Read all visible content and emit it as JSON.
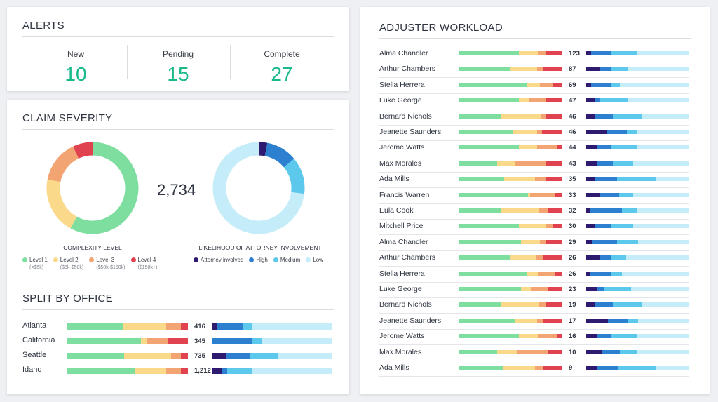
{
  "colors": {
    "level1": "#7ddea0",
    "level2": "#fad98a",
    "level3": "#f2a572",
    "level4": "#e0424f",
    "attorney": "#2e1a6e",
    "high": "#2d7fcf",
    "medium": "#5bc8ec",
    "low": "#c5ecf9",
    "accent": "#18b98a"
  },
  "alerts": {
    "title": "ALERTS",
    "items": [
      {
        "label": "New",
        "value": "10"
      },
      {
        "label": "Pending",
        "value": "15"
      },
      {
        "label": "Complete",
        "value": "27"
      }
    ]
  },
  "severity": {
    "title": "CLAIM SEVERITY",
    "total": "2,734",
    "complexity": {
      "title": "COMPLEXITY LEVEL",
      "slices": [
        {
          "label": "Level 1",
          "sub": "(<$5k)",
          "value": 0.58
        },
        {
          "label": "Level 2",
          "sub": "($5k-$50k)",
          "value": 0.2
        },
        {
          "label": "Level 3",
          "sub": "($50k-$150k)",
          "value": 0.15
        },
        {
          "label": "Level 4",
          "sub": "($150k+)",
          "value": 0.07
        }
      ]
    },
    "attorney": {
      "title": "LIKELIHOOD OF ATTORNEY INVOLVEMENT",
      "slices": [
        {
          "label": "Attorney involved",
          "value": 0.03
        },
        {
          "label": "High",
          "value": 0.11
        },
        {
          "label": "Medium",
          "value": 0.13
        },
        {
          "label": "Low",
          "value": 0.73
        }
      ]
    }
  },
  "offices": {
    "title": "SPLIT BY OFFICE",
    "rows": [
      {
        "name": "Atlanta",
        "count": "416",
        "severity": [
          0.46,
          0.36,
          0.12,
          0.06
        ],
        "attorney": [
          0.04,
          0.22,
          0.08,
          0.66
        ]
      },
      {
        "name": "California",
        "count": "345",
        "severity": [
          0.61,
          0.05,
          0.17,
          0.17
        ],
        "attorney": [
          0.0,
          0.33,
          0.08,
          0.59
        ]
      },
      {
        "name": "Seattle",
        "count": "735",
        "severity": [
          0.47,
          0.39,
          0.08,
          0.06
        ],
        "attorney": [
          0.12,
          0.2,
          0.23,
          0.45
        ]
      },
      {
        "name": "Idaho",
        "count": "1,212",
        "severity": [
          0.56,
          0.26,
          0.12,
          0.06
        ],
        "attorney": [
          0.08,
          0.05,
          0.21,
          0.66
        ]
      }
    ]
  },
  "workload": {
    "title": "ADJUSTER WORKLOAD",
    "rows": [
      {
        "name": "Alma Chandler",
        "count": "123",
        "severity": [
          0.58,
          0.19,
          0.08,
          0.15
        ],
        "attorney": [
          0.05,
          0.2,
          0.24,
          0.51
        ]
      },
      {
        "name": "Arthur Chambers",
        "count": "87",
        "severity": [
          0.49,
          0.27,
          0.06,
          0.18
        ],
        "attorney": [
          0.14,
          0.11,
          0.16,
          0.59
        ]
      },
      {
        "name": "Stella Herrera",
        "count": "69",
        "severity": [
          0.66,
          0.13,
          0.13,
          0.08
        ],
        "attorney": [
          0.05,
          0.2,
          0.08,
          0.67
        ]
      },
      {
        "name": "Luke George",
        "count": "47",
        "severity": [
          0.58,
          0.1,
          0.16,
          0.16
        ],
        "attorney": [
          0.09,
          0.05,
          0.27,
          0.59
        ]
      },
      {
        "name": "Bernard Nichols",
        "count": "46",
        "severity": [
          0.41,
          0.39,
          0.05,
          0.15
        ],
        "attorney": [
          0.08,
          0.18,
          0.28,
          0.46
        ]
      },
      {
        "name": "Jeanette Saunders",
        "count": "46",
        "severity": [
          0.53,
          0.23,
          0.05,
          0.19
        ],
        "attorney": [
          0.2,
          0.2,
          0.1,
          0.5
        ]
      },
      {
        "name": "Jerome Watts",
        "count": "44",
        "severity": [
          0.58,
          0.18,
          0.19,
          0.05
        ],
        "attorney": [
          0.1,
          0.14,
          0.25,
          0.51
        ]
      },
      {
        "name": "Max Morales",
        "count": "43",
        "severity": [
          0.37,
          0.18,
          0.3,
          0.15
        ],
        "attorney": [
          0.1,
          0.16,
          0.2,
          0.54
        ]
      },
      {
        "name": "Ada Mills",
        "count": "35",
        "severity": [
          0.44,
          0.3,
          0.1,
          0.16
        ],
        "attorney": [
          0.09,
          0.21,
          0.38,
          0.32
        ]
      },
      {
        "name": "Francis Warren",
        "count": "33",
        "severity": [
          0.67,
          0.02,
          0.24,
          0.07
        ],
        "attorney": [
          0.14,
          0.18,
          0.14,
          0.54
        ]
      },
      {
        "name": "Eula Cook",
        "count": "32",
        "severity": [
          0.41,
          0.37,
          0.09,
          0.13
        ],
        "attorney": [
          0.04,
          0.31,
          0.14,
          0.51
        ]
      },
      {
        "name": "Mitchell Price",
        "count": "30",
        "severity": [
          0.58,
          0.27,
          0.06,
          0.09
        ],
        "attorney": [
          0.09,
          0.16,
          0.21,
          0.54
        ]
      },
      {
        "name": "Alma Chandler",
        "count": "29",
        "severity": [
          0.6,
          0.19,
          0.06,
          0.15
        ],
        "attorney": [
          0.06,
          0.24,
          0.21,
          0.49
        ]
      },
      {
        "name": "Arthur Chambers",
        "count": "26",
        "severity": [
          0.49,
          0.26,
          0.07,
          0.18
        ],
        "attorney": [
          0.14,
          0.11,
          0.14,
          0.61
        ]
      },
      {
        "name": "Stella Herrera",
        "count": "26",
        "severity": [
          0.66,
          0.11,
          0.16,
          0.07
        ],
        "attorney": [
          0.04,
          0.21,
          0.1,
          0.65
        ]
      },
      {
        "name": "Luke George",
        "count": "23",
        "severity": [
          0.6,
          0.1,
          0.16,
          0.14
        ],
        "attorney": [
          0.1,
          0.07,
          0.27,
          0.56
        ]
      },
      {
        "name": "Bernard Nichols",
        "count": "19",
        "severity": [
          0.41,
          0.37,
          0.07,
          0.15
        ],
        "attorney": [
          0.09,
          0.17,
          0.29,
          0.45
        ]
      },
      {
        "name": "Jeanette Saunders",
        "count": "17",
        "severity": [
          0.54,
          0.22,
          0.06,
          0.18
        ],
        "attorney": [
          0.21,
          0.2,
          0.1,
          0.49
        ]
      },
      {
        "name": "Jerome Watts",
        "count": "16",
        "severity": [
          0.58,
          0.19,
          0.19,
          0.04
        ],
        "attorney": [
          0.11,
          0.14,
          0.25,
          0.5
        ]
      },
      {
        "name": "Max Morales",
        "count": "10",
        "severity": [
          0.37,
          0.19,
          0.3,
          0.14
        ],
        "attorney": [
          0.16,
          0.17,
          0.16,
          0.51
        ]
      },
      {
        "name": "Ada Mills",
        "count": "9",
        "severity": [
          0.43,
          0.31,
          0.08,
          0.18
        ],
        "attorney": [
          0.1,
          0.21,
          0.37,
          0.32
        ]
      }
    ]
  }
}
